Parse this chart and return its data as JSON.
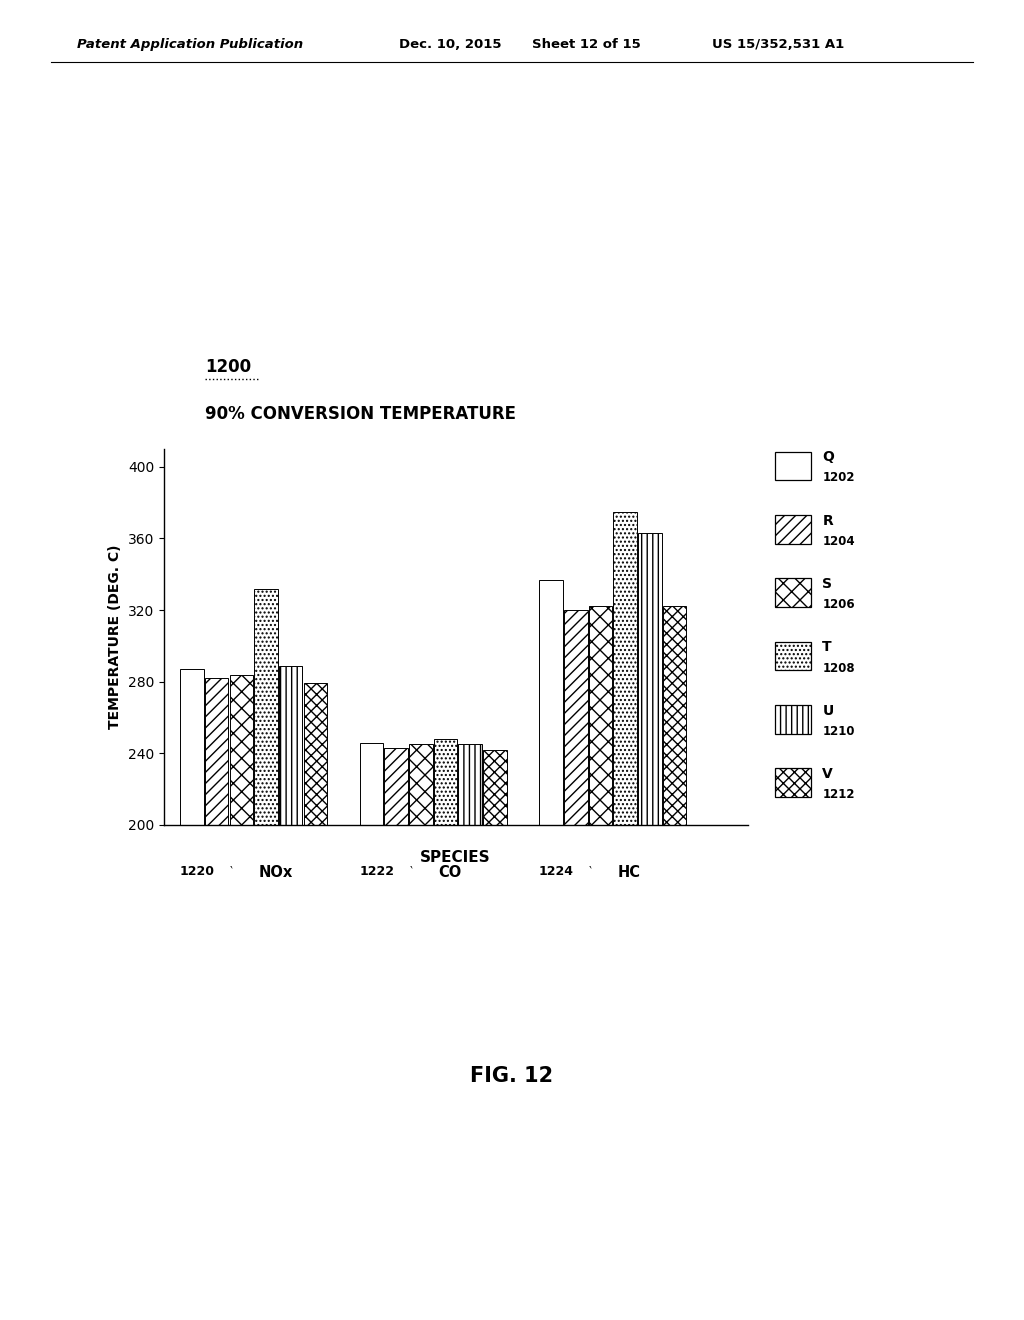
{
  "title_label": "1200",
  "subtitle": "90% CONVERSION TEMPERATURE",
  "ylabel": "TEMPERATURE (DEG. C)",
  "xlabel": "SPECIES",
  "ylim": [
    200,
    410
  ],
  "yticks": [
    200,
    240,
    280,
    320,
    360,
    400
  ],
  "groups": [
    "NOx",
    "CO",
    "HC"
  ],
  "group_numbers": [
    "1220",
    "1222",
    "1224"
  ],
  "series_top": [
    "Q",
    "R",
    "S",
    "T",
    "U",
    "V"
  ],
  "series_bot": [
    "1202",
    "1204",
    "1206",
    "1208",
    "1210",
    "1212"
  ],
  "data": {
    "NOx": [
      287,
      282,
      284,
      332,
      289,
      279
    ],
    "CO": [
      246,
      243,
      245,
      248,
      245,
      242
    ],
    "HC": [
      337,
      320,
      322,
      375,
      363,
      322
    ]
  },
  "background_color": "#ffffff",
  "fig_label": "FIG. 12"
}
